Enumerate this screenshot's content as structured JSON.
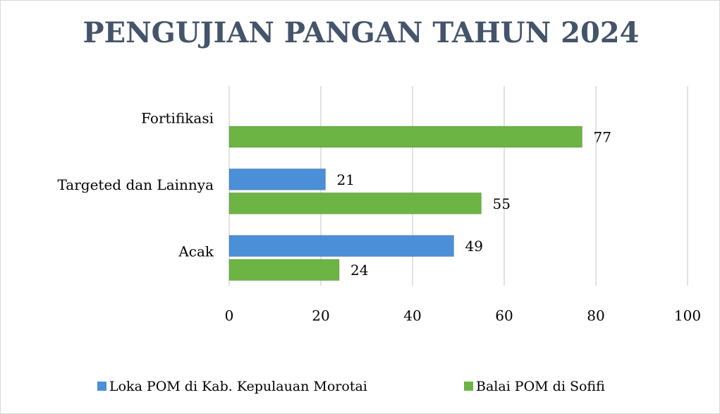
{
  "chart_data": {
    "type": "hbar",
    "title": "PENGUJIAN PANGAN TAHUN 2024",
    "categories": [
      "Fortifikasi",
      "Targeted dan Lainnya",
      "Acak"
    ],
    "series": [
      {
        "name": "Loka POM di Kab. Kepulauan Morotai",
        "color": "#4a8fd8",
        "values": [
          null,
          21,
          49
        ]
      },
      {
        "name": "Balai POM di Sofifi",
        "color": "#6cb444",
        "values": [
          77,
          55,
          24
        ]
      }
    ],
    "xlim": [
      0,
      100
    ],
    "xticks": [
      0,
      20,
      40,
      60,
      80,
      100
    ],
    "grid": true,
    "legend": "bottom"
  }
}
